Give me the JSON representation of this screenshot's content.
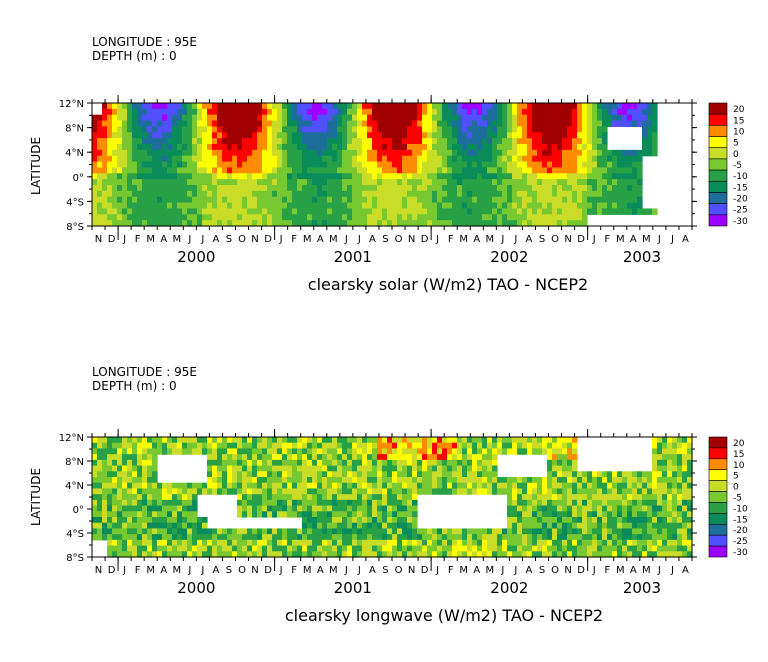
{
  "palette": {
    "bins": [
      -30,
      -25,
      -20,
      -15,
      -10,
      -5,
      0,
      5,
      10,
      15,
      20
    ],
    "colors": [
      "#9c00ff",
      "#5050ff",
      "#1e6e9c",
      "#0a8c5a",
      "#28a046",
      "#78c832",
      "#c8dc28",
      "#ffff00",
      "#ff8c00",
      "#ff0000",
      "#a00000"
    ]
  },
  "common": {
    "month_labels": [
      "N",
      "D",
      "J",
      "F",
      "M",
      "A",
      "M",
      "J",
      "J",
      "A",
      "S",
      "O",
      "N",
      "D",
      "J",
      "F",
      "M",
      "A",
      "M",
      "J",
      "J",
      "A",
      "S",
      "O",
      "N",
      "D",
      "J",
      "F",
      "M",
      "A",
      "M",
      "J",
      "J",
      "A",
      "S",
      "O",
      "N",
      "D",
      "J",
      "F",
      "M",
      "A",
      "M",
      "J",
      "J",
      "A"
    ],
    "year_labels": [
      "2000",
      "2001",
      "2002",
      "2003"
    ],
    "lat_labels": [
      "12°N",
      "8°N",
      "4°N",
      "0°",
      "4°S",
      "8°S"
    ],
    "colorbar_labels": [
      "20",
      "15",
      "10",
      "5",
      "0",
      "-5",
      "-10",
      "-15",
      "-20",
      "-25",
      "-30"
    ]
  },
  "panels": [
    {
      "info_line1": "LONGITUDE : 95E",
      "info_line2": "DEPTH (m) : 0",
      "ylabel": "LATITUDE",
      "title": "clearsky solar (W/m2)  TAO - NCEP2"
    },
    {
      "info_line1": "LONGITUDE : 95E",
      "info_line2": "DEPTH (m) : 0",
      "ylabel": "LATITUDE",
      "title": "clearsky longwave (W/m2)  TAO - NCEP2"
    }
  ],
  "chart_data": [
    {
      "type": "heatmap",
      "title": "clearsky solar (W/m2)  TAO - NCEP2",
      "ylabel": "LATITUDE",
      "x_range": [
        "1999-11",
        "2003-08"
      ],
      "y_range": [
        -8,
        12
      ],
      "latitudes": [
        12,
        8,
        4,
        0,
        -4,
        -8
      ],
      "color_scale": [
        -30,
        20
      ],
      "pattern": "annual cycle: values below -20 in Dec-Feb at 12N and 8N; values above +20 in Sep-Oct at 4N-12N; mostly -10 to +5 south of the equator"
    },
    {
      "type": "heatmap",
      "title": "clearsky longwave (W/m2)  TAO - NCEP2",
      "ylabel": "LATITUDE",
      "x_range": [
        "1999-11",
        "2003-08"
      ],
      "y_range": [
        -8,
        12
      ],
      "latitudes": [
        12,
        8,
        4,
        0,
        -4,
        -8
      ],
      "color_scale": [
        -30,
        20
      ],
      "pattern": "mostly -10 to +5 with gaps; up to +15 near 12N-8N late 2001 and early 2002; down to -20 near 0 to 4S"
    }
  ]
}
